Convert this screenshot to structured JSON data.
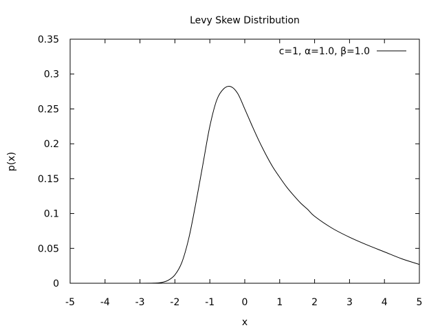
{
  "chart_data": {
    "type": "line",
    "title": "Levy Skew Distribution",
    "xlabel": "x",
    "ylabel": "p(x)",
    "xlim": [
      -5,
      5
    ],
    "ylim": [
      0,
      0.35
    ],
    "xticks": [
      "-5",
      "-4",
      "-3",
      "-2",
      "-1",
      "0",
      "1",
      "2",
      "3",
      "4",
      "5"
    ],
    "yticks": [
      "0",
      "0.05",
      "0.1",
      "0.15",
      "0.2",
      "0.25",
      "0.3",
      "0.35"
    ],
    "legend_position": "top-right",
    "series": [
      {
        "name": "c=1, α=1.0, β=1.0",
        "color": "#000000",
        "x": [
          -5,
          -4,
          -3,
          -2.6,
          -2.4,
          -2.2,
          -2.0,
          -1.8,
          -1.6,
          -1.4,
          -1.2,
          -1.0,
          -0.8,
          -0.6,
          -0.4,
          -0.2,
          0.0,
          0.2,
          0.4,
          0.6,
          0.8,
          1.0,
          1.2,
          1.4,
          1.6,
          1.8,
          2.0,
          2.5,
          3.0,
          3.5,
          4.0,
          4.5,
          5.0
        ],
        "y": [
          0,
          0,
          0,
          0.0002,
          0.001,
          0.004,
          0.012,
          0.03,
          0.065,
          0.115,
          0.17,
          0.225,
          0.263,
          0.279,
          0.282,
          0.272,
          0.25,
          0.227,
          0.205,
          0.185,
          0.167,
          0.152,
          0.138,
          0.126,
          0.115,
          0.106,
          0.096,
          0.079,
          0.066,
          0.055,
          0.045,
          0.035,
          0.027
        ]
      }
    ]
  }
}
